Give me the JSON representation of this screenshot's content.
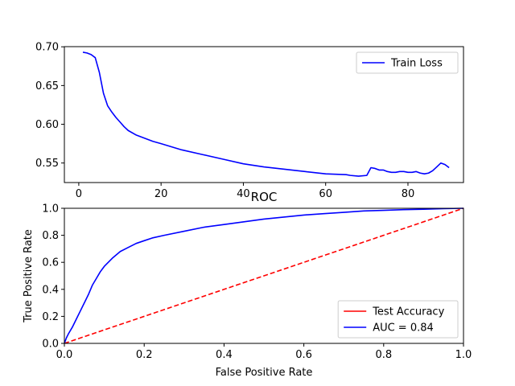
{
  "chart_data": [
    {
      "type": "line",
      "title": "",
      "xlabel": "",
      "ylabel": "",
      "xlim": [
        -3.5,
        93.5
      ],
      "ylim": [
        0.5248,
        0.7002
      ],
      "xticks": [
        0,
        20,
        40,
        60,
        80
      ],
      "xtick_labels": [
        "0",
        "20",
        "40",
        "60",
        "80"
      ],
      "yticks": [
        0.55,
        0.6,
        0.65,
        0.7
      ],
      "ytick_labels": [
        "0.55",
        "0.60",
        "0.65",
        "0.70"
      ],
      "grid": false,
      "legend_position": "top-right",
      "series": [
        {
          "name": "Train Loss",
          "color": "#0000ff",
          "x": [
            1,
            2,
            3,
            4,
            5,
            6,
            7,
            8,
            9,
            10,
            11,
            12,
            14,
            16,
            18,
            20,
            25,
            30,
            35,
            40,
            45,
            50,
            55,
            60,
            65,
            66,
            68,
            70,
            71,
            72,
            73,
            74,
            75,
            76,
            77,
            78,
            79,
            80,
            81,
            82,
            83,
            84,
            85,
            86,
            87,
            88,
            89,
            90
          ],
          "values": [
            0.693,
            0.692,
            0.69,
            0.686,
            0.667,
            0.64,
            0.624,
            0.616,
            0.609,
            0.603,
            0.597,
            0.592,
            0.586,
            0.582,
            0.578,
            0.575,
            0.567,
            0.561,
            0.555,
            0.549,
            0.545,
            0.542,
            0.539,
            0.536,
            0.535,
            0.534,
            0.533,
            0.534,
            0.544,
            0.543,
            0.541,
            0.541,
            0.539,
            0.538,
            0.538,
            0.539,
            0.539,
            0.538,
            0.538,
            0.539,
            0.537,
            0.536,
            0.537,
            0.54,
            0.545,
            0.55,
            0.548,
            0.544
          ]
        }
      ]
    },
    {
      "type": "line",
      "title": "ROC",
      "xlabel": "False Positive Rate",
      "ylabel": "True Positive Rate",
      "xlim": [
        0.0,
        1.0
      ],
      "ylim": [
        0.0,
        1.0
      ],
      "xticks": [
        0.0,
        0.2,
        0.4,
        0.6,
        0.8,
        1.0
      ],
      "xtick_labels": [
        "0.0",
        "0.2",
        "0.4",
        "0.6",
        "0.8",
        "1.0"
      ],
      "yticks": [
        0.0,
        0.2,
        0.4,
        0.6,
        0.8,
        1.0
      ],
      "ytick_labels": [
        "0.0",
        "0.2",
        "0.4",
        "0.6",
        "0.8",
        "1.0"
      ],
      "grid": false,
      "legend_position": "bottom-right",
      "series": [
        {
          "name": "Test Accuracy",
          "color": "#ff0000",
          "dashed": true,
          "x": [
            0.0,
            1.0
          ],
          "values": [
            0.0,
            1.0
          ]
        },
        {
          "name": "AUC = 0.84",
          "color": "#0000ff",
          "dashed": false,
          "x": [
            0.0,
            0.005,
            0.01,
            0.02,
            0.03,
            0.04,
            0.05,
            0.06,
            0.07,
            0.08,
            0.09,
            0.1,
            0.12,
            0.14,
            0.16,
            0.18,
            0.2,
            0.22,
            0.25,
            0.3,
            0.35,
            0.4,
            0.45,
            0.5,
            0.55,
            0.6,
            0.65,
            0.7,
            0.75,
            0.8,
            0.85,
            0.9,
            0.95,
            1.0
          ],
          "values": [
            0.0,
            0.04,
            0.07,
            0.12,
            0.18,
            0.24,
            0.3,
            0.36,
            0.43,
            0.48,
            0.53,
            0.57,
            0.63,
            0.68,
            0.71,
            0.74,
            0.76,
            0.78,
            0.8,
            0.83,
            0.86,
            0.88,
            0.9,
            0.92,
            0.935,
            0.95,
            0.96,
            0.97,
            0.98,
            0.985,
            0.99,
            0.993,
            0.997,
            1.0
          ]
        }
      ]
    }
  ]
}
